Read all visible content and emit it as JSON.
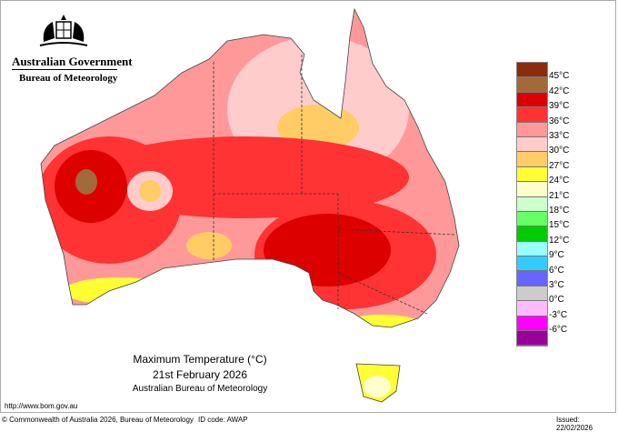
{
  "header": {
    "government": "Australian Government",
    "agency": "Bureau of Meteorology",
    "logo": "coat-of-arms"
  },
  "title": {
    "line1": "Maximum Temperature (°C)",
    "line2": "21st February 2026",
    "line3": "Australian Bureau of Meteorology"
  },
  "legend": {
    "labels": [
      "45°C",
      "42°C",
      "39°C",
      "36°C",
      "33°C",
      "30°C",
      "27°C",
      "24°C",
      "21°C",
      "18°C",
      "15°C",
      "12°C",
      "9°C",
      "6°C",
      "3°C",
      "0°C",
      "-3°C",
      "-6°C"
    ],
    "colors": [
      "#8b2c0a",
      "#a26a3a",
      "#dd0000",
      "#ff3333",
      "#ff9999",
      "#ffcccc",
      "#ffcc66",
      "#ffff33",
      "#ffffcc",
      "#ccffcc",
      "#66ff66",
      "#00cc00",
      "#99ffff",
      "#33ccff",
      "#6666ff",
      "#cccccc",
      "#ffbbff",
      "#ff00ff",
      "#990099"
    ]
  },
  "footer": {
    "url": "http://www.bom.gov.au",
    "copyright": "© Commonwealth of Australia 2026, Bureau of Meteorology",
    "id_code": "ID code: AWAP",
    "issued": "Issued: 22/02/2026"
  }
}
